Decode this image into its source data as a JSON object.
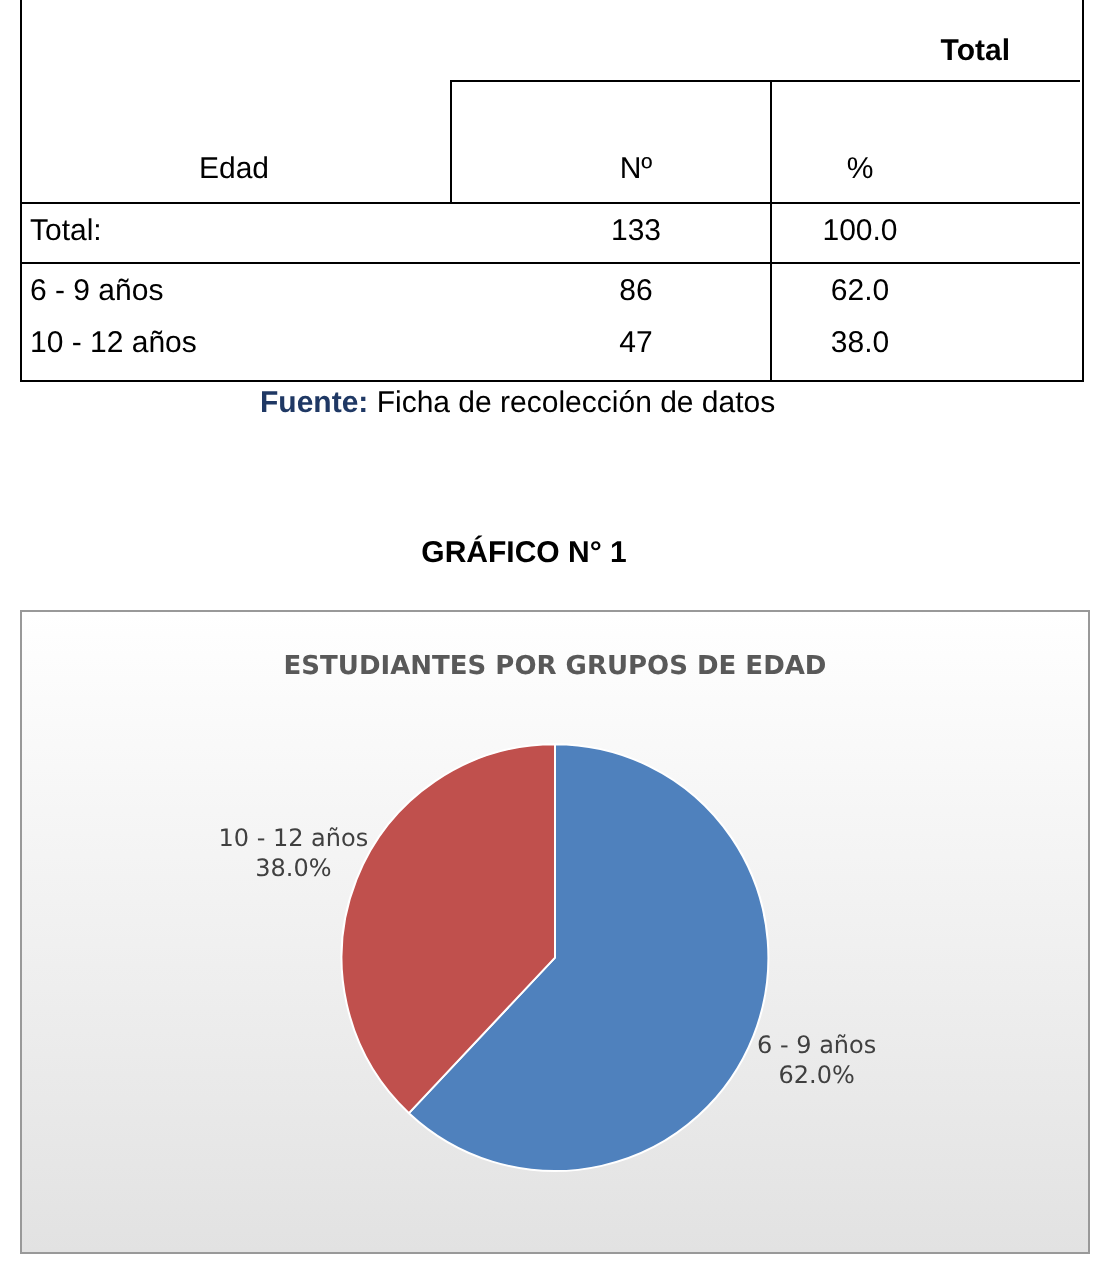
{
  "chart_data": {
    "type": "pie",
    "title": "ESTUDIANTES POR GRUPOS DE EDAD",
    "categories": [
      "6 - 9 años",
      "10 - 12 años"
    ],
    "values": [
      62.0,
      38.0
    ],
    "colors": [
      "#4f81bd",
      "#c0504d"
    ],
    "value_labels": [
      "62.0%",
      "38.0%"
    ],
    "legend": false,
    "annotations": [
      "Total",
      "Edad",
      "Nº",
      "%",
      "Total:",
      "133",
      "100.0",
      "6 - 9 años",
      "86",
      "62.0",
      "10 - 12 años",
      "47",
      "38.0",
      "Fuente: Ficha de recolección de datos",
      "GRÁFICO N°  1"
    ]
  }
}
